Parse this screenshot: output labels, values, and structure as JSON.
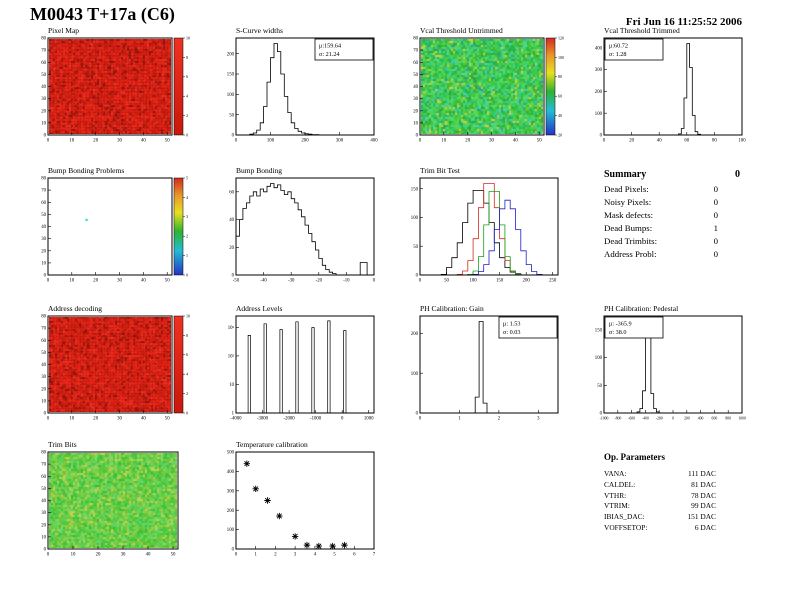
{
  "title": "M0043 T+17a (C6)",
  "timestamp": "Fri Jun 16 11:25:52 2006",
  "summary": {
    "title": "Summary",
    "total": "0",
    "rows": [
      {
        "label": "Dead Pixels:",
        "value": "0"
      },
      {
        "label": "Noisy Pixels:",
        "value": "0"
      },
      {
        "label": "Mask defects:",
        "value": "0"
      },
      {
        "label": "Dead Bumps:",
        "value": "1"
      },
      {
        "label": "Dead Trimbits:",
        "value": "0"
      },
      {
        "label": "Address Probl:",
        "value": "0"
      }
    ]
  },
  "op_parameters": {
    "title": "Op. Parameters",
    "rows": [
      {
        "label": "VANA:",
        "value": "111 DAC"
      },
      {
        "label": "CALDEL:",
        "value": "81 DAC"
      },
      {
        "label": "VTHR:",
        "value": "78 DAC"
      },
      {
        "label": "VTRIM:",
        "value": "99 DAC"
      },
      {
        "label": "IBIAS_DAC:",
        "value": "151 DAC"
      },
      {
        "label": "VOFFSETOP:",
        "value": "6 DAC"
      }
    ]
  },
  "chart_data": [
    {
      "id": "pixel-map",
      "title": "Pixel Map",
      "type": "heatmap",
      "palette": "red",
      "colorbar": "red",
      "xlim": [
        0,
        52
      ],
      "ylim": [
        0,
        80
      ],
      "xlabel_ticks": [
        0,
        10,
        20,
        30,
        40,
        50
      ],
      "ylabel_ticks": [
        0,
        10,
        20,
        30,
        40,
        50,
        60,
        70,
        80
      ],
      "zticks": [
        "10",
        "8",
        "6",
        "4",
        "2",
        "0"
      ]
    },
    {
      "id": "scurve-widths",
      "title": "S-Curve widths",
      "type": "hist",
      "stats": [
        "μ:159.64",
        "σ: 21.24"
      ],
      "stats_pos": "right",
      "xlim": [
        0,
        400
      ],
      "xticks": [
        0,
        100,
        200,
        300,
        400
      ],
      "yticks": [
        0,
        50,
        100,
        150,
        200
      ],
      "values": [
        0,
        0,
        0,
        0,
        2,
        5,
        12,
        30,
        70,
        130,
        190,
        225,
        205,
        150,
        95,
        55,
        30,
        16,
        9,
        5,
        3,
        2,
        1,
        1,
        0,
        0,
        0,
        0,
        0,
        0,
        0,
        0,
        0,
        0,
        0,
        0,
        0,
        0,
        0,
        0
      ]
    },
    {
      "id": "vcal-threshold-untrimmed",
      "title": "Vcal Threshold Untrimmed",
      "type": "heatmap",
      "palette": "green",
      "colorbar": "rainbow",
      "xlim": [
        0,
        52
      ],
      "ylim": [
        0,
        80
      ],
      "xlabel_ticks": [
        0,
        10,
        20,
        30,
        40,
        50
      ],
      "ylabel_ticks": [
        0,
        10,
        20,
        30,
        40,
        50,
        60,
        70,
        80
      ],
      "zticks": [
        "120",
        "100",
        "80",
        "60",
        "40",
        "20"
      ]
    },
    {
      "id": "vcal-threshold-trimmed",
      "title": "Vcal Threshold Trimmed",
      "type": "hist",
      "stats": [
        "μ:60.72",
        "σ: 1.28"
      ],
      "stats_pos": "left",
      "xlim": [
        0,
        100
      ],
      "xticks": [
        0,
        20,
        40,
        60,
        80,
        100
      ],
      "yticks": [
        0,
        100,
        200,
        300,
        400
      ],
      "values": [
        0,
        0,
        0,
        0,
        0,
        0,
        0,
        0,
        0,
        0,
        0,
        0,
        0,
        0,
        0,
        0,
        0,
        0,
        0,
        0,
        0,
        0,
        0,
        0,
        0,
        0,
        0,
        5,
        30,
        170,
        420,
        310,
        90,
        15,
        3,
        0,
        0,
        0,
        0,
        0,
        0,
        0,
        0,
        0,
        0,
        0,
        0,
        0,
        0,
        0
      ]
    },
    {
      "id": "bump-bonding-problems",
      "title": "Bump Bonding Problems",
      "type": "heatmap",
      "palette": "white",
      "colorbar": "rainbow",
      "xlim": [
        0,
        52
      ],
      "ylim": [
        0,
        80
      ],
      "xlabel_ticks": [
        0,
        10,
        20,
        30,
        40,
        50
      ],
      "ylabel_ticks": [
        0,
        10,
        20,
        30,
        40,
        50,
        60,
        70,
        80
      ],
      "zticks": [
        "5",
        "4",
        "3",
        "2",
        "1",
        "0"
      ],
      "dots": [
        {
          "x": 0.3,
          "y": 0.42,
          "color": "#00c8c8"
        }
      ]
    },
    {
      "id": "bump-bonding",
      "title": "Bump Bonding",
      "type": "hist",
      "xlim": [
        -50,
        0
      ],
      "xticks": [
        -50,
        -40,
        -30,
        -20,
        -10,
        0
      ],
      "yticks": [
        0,
        20,
        40,
        60
      ],
      "values": [
        28,
        40,
        48,
        52,
        57,
        60,
        57,
        62,
        60,
        64,
        66,
        63,
        65,
        61,
        58,
        60,
        55,
        52,
        47,
        42,
        36,
        30,
        24,
        18,
        12,
        7,
        4,
        2,
        1,
        0,
        0,
        0,
        0,
        0,
        0,
        0,
        9,
        9,
        0,
        0
      ]
    },
    {
      "id": "trim-bit-test",
      "title": "Trim Bit Test",
      "type": "multihist",
      "xlim": [
        0,
        260
      ],
      "xticks": [
        0,
        50,
        100,
        150,
        200,
        250
      ],
      "yticks": [
        0,
        50,
        100,
        150
      ],
      "series": [
        {
          "name": "series-black",
          "color": "#000000",
          "values": [
            0,
            0,
            0,
            0,
            1,
            13,
            30,
            56,
            91,
            125,
            147,
            147,
            125,
            91,
            56,
            30,
            13,
            5,
            2,
            0,
            0,
            0,
            0,
            0,
            0,
            0
          ]
        },
        {
          "name": "series-red",
          "color": "#d42a20",
          "values": [
            0,
            0,
            0,
            0,
            0,
            0,
            0,
            1,
            7,
            25,
            63,
            117,
            159,
            159,
            117,
            63,
            25,
            7,
            1,
            0,
            0,
            0,
            0,
            0,
            0,
            0
          ]
        },
        {
          "name": "series-green",
          "color": "#18a018",
          "values": [
            0,
            0,
            0,
            0,
            0,
            0,
            0,
            0,
            0,
            1,
            7,
            32,
            87,
            145,
            145,
            87,
            32,
            7,
            1,
            0,
            0,
            0,
            0,
            0,
            0,
            0
          ]
        },
        {
          "name": "series-blue",
          "color": "#2020c8",
          "values": [
            0,
            0,
            0,
            0,
            0,
            0,
            0,
            0,
            0,
            0,
            1,
            6,
            18,
            42,
            79,
            115,
            130,
            115,
            79,
            42,
            18,
            6,
            1,
            0,
            0,
            0
          ]
        }
      ]
    },
    {
      "id": "address-decoding",
      "title": "Address decoding",
      "type": "heatmap",
      "palette": "red",
      "colorbar": "red",
      "xlim": [
        0,
        52
      ],
      "ylim": [
        0,
        80
      ],
      "xlabel_ticks": [
        0,
        10,
        20,
        30,
        40,
        50
      ],
      "ylabel_ticks": [
        0,
        10,
        20,
        30,
        40,
        50,
        60,
        70,
        80
      ],
      "zticks": [
        "10",
        "8",
        "6",
        "4",
        "2",
        "0"
      ]
    },
    {
      "id": "address-levels",
      "title": "Address Levels",
      "type": "spikes",
      "log": true,
      "xlim": [
        -4000,
        1200
      ],
      "xticks": [
        -4000,
        -3000,
        -2000,
        -1000,
        0,
        1000
      ],
      "yticks": [
        "1",
        "10",
        "10²",
        "10³"
      ],
      "spikes": [
        {
          "x": -3500,
          "h": 0.8
        },
        {
          "x": -2900,
          "h": 0.92
        },
        {
          "x": -2300,
          "h": 0.86
        },
        {
          "x": -1700,
          "h": 0.94
        },
        {
          "x": -1100,
          "h": 0.88
        },
        {
          "x": -500,
          "h": 0.95
        },
        {
          "x": 100,
          "h": 0.85
        }
      ]
    },
    {
      "id": "ph-calibration-gain",
      "title": "PH Calibration: Gain",
      "type": "hist",
      "stats": [
        "μ: 1.53",
        "σ: 0.03"
      ],
      "stats_pos": "right",
      "xlim": [
        0,
        3.5
      ],
      "xticks": [
        0,
        1,
        2,
        3
      ],
      "yticks": [
        0,
        100,
        200
      ],
      "values": [
        0,
        0,
        0,
        0,
        0,
        0,
        0,
        0,
        0,
        0,
        0,
        0,
        0,
        0,
        40,
        230,
        25,
        0,
        0,
        0,
        0,
        0,
        0,
        0,
        0,
        0,
        0,
        0,
        0,
        0,
        0,
        0,
        0,
        0,
        0
      ]
    },
    {
      "id": "ph-calibration-pedestal",
      "title": "PH Calibration: Pedestal",
      "type": "hist",
      "stats": [
        "μ: -365.9",
        "σ: 38.0"
      ],
      "stats_pos": "left",
      "xlim": [
        -1000,
        1000
      ],
      "xticks": [
        -1000,
        -800,
        -600,
        -400,
        -200,
        0,
        200,
        400,
        600,
        800,
        1000
      ],
      "yticks": [
        0,
        50,
        100,
        150
      ],
      "values": [
        0,
        0,
        0,
        0,
        0,
        0,
        0,
        0,
        0,
        0,
        0,
        0,
        2,
        8,
        40,
        165,
        155,
        35,
        8,
        2,
        0,
        0,
        0,
        0,
        0,
        0,
        0,
        0,
        0,
        0,
        0,
        0,
        0,
        0,
        0,
        0,
        0,
        0,
        0,
        0,
        0,
        0,
        0,
        0,
        0,
        0,
        0,
        0,
        0,
        0
      ]
    },
    {
      "id": "trim-bits",
      "title": "Trim Bits",
      "type": "heatmap",
      "palette": "green2",
      "colorbar": null,
      "xlim": [
        0,
        52
      ],
      "ylim": [
        0,
        80
      ],
      "xlabel_ticks": [
        0,
        10,
        20,
        30,
        40,
        50
      ],
      "ylabel_ticks": [
        0,
        10,
        20,
        30,
        40,
        50,
        60,
        70,
        80
      ]
    },
    {
      "id": "temperature-calibration",
      "title": "Temperature calibration",
      "type": "scatter",
      "marker": "asterisk",
      "xlim": [
        0,
        7
      ],
      "xticks": [
        0,
        1,
        2,
        3,
        4,
        5,
        6,
        7
      ],
      "ylim": [
        0,
        500
      ],
      "yticks": [
        0,
        100,
        200,
        300,
        400,
        500
      ],
      "points": [
        [
          0.55,
          440
        ],
        [
          1.0,
          310
        ],
        [
          1.6,
          250
        ],
        [
          2.2,
          170
        ],
        [
          3.0,
          65
        ],
        [
          3.6,
          20
        ],
        [
          4.2,
          15
        ],
        [
          4.9,
          15
        ],
        [
          5.5,
          20
        ]
      ]
    }
  ]
}
